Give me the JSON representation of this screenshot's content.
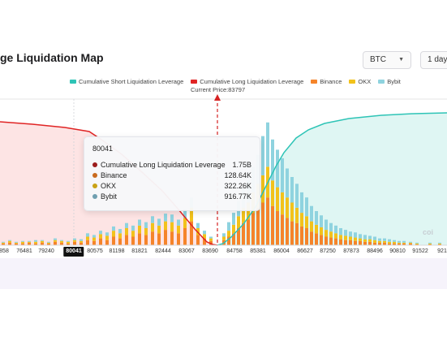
{
  "header": {
    "title": "ge Liquidation Map",
    "coin_select": "BTC",
    "range_select": "1 day"
  },
  "colors": {
    "short": "#2ec4b6",
    "long": "#e02424",
    "binance": "#f5842a",
    "okx": "#f2c21b",
    "bybit": "#8fd3df"
  },
  "chart_data": {
    "type": "bar",
    "title": "",
    "legend": {
      "placement": "top",
      "items": [
        {
          "name": "Cumulative Short Liquidation Leverage",
          "color": "#2ec4b6"
        },
        {
          "name": "Cumulative Long Liquidation Leverage",
          "color": "#e02424"
        },
        {
          "name": "Binance",
          "color": "#f5842a"
        },
        {
          "name": "OKX",
          "color": "#f2c21b"
        },
        {
          "name": "Bybit",
          "color": "#8fd3df"
        }
      ]
    },
    "current_price_label": "Current Price:83797",
    "current_price": 83797,
    "x_tick_labels": [
      "858",
      "76481",
      "79240",
      "80041",
      "80575",
      "81198",
      "81821",
      "82444",
      "83067",
      "83690",
      "84758",
      "85381",
      "86004",
      "86627",
      "87250",
      "87873",
      "88496",
      "90810",
      "91522",
      "921"
    ],
    "x_tick_positions": [
      5,
      30,
      57,
      91,
      117,
      144,
      172,
      201,
      230,
      259,
      289,
      318,
      347,
      376,
      404,
      433,
      462,
      490,
      518,
      545
    ],
    "active_tick": "80041",
    "bars": [
      {
        "x": 4,
        "b": 2,
        "o": 1,
        "y": 1
      },
      {
        "x": 12,
        "b": 3,
        "o": 2,
        "y": 1
      },
      {
        "x": 20,
        "b": 2,
        "o": 1,
        "y": 1
      },
      {
        "x": 28,
        "b": 2,
        "o": 2,
        "y": 1
      },
      {
        "x": 36,
        "b": 3,
        "o": 1,
        "y": 1
      },
      {
        "x": 44,
        "b": 2,
        "o": 2,
        "y": 2
      },
      {
        "x": 52,
        "b": 3,
        "o": 2,
        "y": 1
      },
      {
        "x": 60,
        "b": 2,
        "o": 1,
        "y": 1
      },
      {
        "x": 68,
        "b": 4,
        "o": 2,
        "y": 2
      },
      {
        "x": 76,
        "b": 3,
        "o": 2,
        "y": 1
      },
      {
        "x": 84,
        "b": 2,
        "o": 2,
        "y": 1
      },
      {
        "x": 92,
        "b": 4,
        "o": 2,
        "y": 2
      },
      {
        "x": 100,
        "b": 3,
        "o": 2,
        "y": 2
      },
      {
        "x": 108,
        "b": 6,
        "o": 4,
        "y": 4
      },
      {
        "x": 116,
        "b": 5,
        "o": 4,
        "y": 3
      },
      {
        "x": 124,
        "b": 8,
        "o": 5,
        "y": 4
      },
      {
        "x": 132,
        "b": 6,
        "o": 5,
        "y": 4
      },
      {
        "x": 140,
        "b": 10,
        "o": 7,
        "y": 5
      },
      {
        "x": 148,
        "b": 8,
        "o": 6,
        "y": 5
      },
      {
        "x": 156,
        "b": 12,
        "o": 8,
        "y": 6
      },
      {
        "x": 164,
        "b": 10,
        "o": 7,
        "y": 6
      },
      {
        "x": 172,
        "b": 14,
        "o": 9,
        "y": 7
      },
      {
        "x": 180,
        "b": 12,
        "o": 8,
        "y": 7
      },
      {
        "x": 188,
        "b": 16,
        "o": 10,
        "y": 8
      },
      {
        "x": 196,
        "b": 14,
        "o": 9,
        "y": 8
      },
      {
        "x": 204,
        "b": 18,
        "o": 10,
        "y": 9
      },
      {
        "x": 212,
        "b": 16,
        "o": 11,
        "y": 9
      },
      {
        "x": 220,
        "b": 14,
        "o": 9,
        "y": 7
      },
      {
        "x": 228,
        "b": 20,
        "o": 12,
        "y": 10
      },
      {
        "x": 236,
        "b": 28,
        "o": 16,
        "y": 12
      },
      {
        "x": 244,
        "b": 12,
        "o": 8,
        "y": 6
      },
      {
        "x": 252,
        "b": 8,
        "o": 5,
        "y": 4
      },
      {
        "x": 260,
        "b": 5,
        "o": 3,
        "y": 2
      },
      {
        "x": 276,
        "b": 6,
        "o": 4,
        "y": 4
      },
      {
        "x": 282,
        "b": 10,
        "o": 7,
        "y": 10
      },
      {
        "x": 288,
        "b": 14,
        "o": 10,
        "y": 14
      },
      {
        "x": 294,
        "b": 20,
        "o": 14,
        "y": 18
      },
      {
        "x": 300,
        "b": 26,
        "o": 18,
        "y": 22
      },
      {
        "x": 306,
        "b": 30,
        "o": 20,
        "y": 26
      },
      {
        "x": 312,
        "b": 38,
        "o": 24,
        "y": 30
      },
      {
        "x": 318,
        "b": 44,
        "o": 28,
        "y": 34
      },
      {
        "x": 324,
        "b": 50,
        "o": 32,
        "y": 46
      },
      {
        "x": 330,
        "b": 56,
        "o": 36,
        "y": 52
      },
      {
        "x": 336,
        "b": 46,
        "o": 30,
        "y": 48
      },
      {
        "x": 342,
        "b": 40,
        "o": 28,
        "y": 44
      },
      {
        "x": 348,
        "b": 36,
        "o": 26,
        "y": 40
      },
      {
        "x": 354,
        "b": 32,
        "o": 24,
        "y": 34
      },
      {
        "x": 360,
        "b": 28,
        "o": 22,
        "y": 30
      },
      {
        "x": 366,
        "b": 26,
        "o": 18,
        "y": 28
      },
      {
        "x": 372,
        "b": 22,
        "o": 16,
        "y": 24
      },
      {
        "x": 378,
        "b": 20,
        "o": 14,
        "y": 22
      },
      {
        "x": 384,
        "b": 16,
        "o": 12,
        "y": 18
      },
      {
        "x": 390,
        "b": 14,
        "o": 10,
        "y": 16
      },
      {
        "x": 396,
        "b": 12,
        "o": 9,
        "y": 14
      },
      {
        "x": 402,
        "b": 10,
        "o": 8,
        "y": 12
      },
      {
        "x": 408,
        "b": 9,
        "o": 7,
        "y": 10
      },
      {
        "x": 414,
        "b": 8,
        "o": 6,
        "y": 9
      },
      {
        "x": 420,
        "b": 7,
        "o": 5,
        "y": 8
      },
      {
        "x": 426,
        "b": 6,
        "o": 5,
        "y": 7
      },
      {
        "x": 432,
        "b": 6,
        "o": 4,
        "y": 6
      },
      {
        "x": 438,
        "b": 5,
        "o": 4,
        "y": 6
      },
      {
        "x": 444,
        "b": 5,
        "o": 3,
        "y": 5
      },
      {
        "x": 450,
        "b": 4,
        "o": 3,
        "y": 5
      },
      {
        "x": 456,
        "b": 4,
        "o": 3,
        "y": 4
      },
      {
        "x": 462,
        "b": 3,
        "o": 3,
        "y": 4
      },
      {
        "x": 468,
        "b": 3,
        "o": 2,
        "y": 3
      },
      {
        "x": 474,
        "b": 3,
        "o": 2,
        "y": 3
      },
      {
        "x": 480,
        "b": 2,
        "o": 2,
        "y": 3
      },
      {
        "x": 486,
        "b": 2,
        "o": 2,
        "y": 2
      },
      {
        "x": 492,
        "b": 2,
        "o": 1,
        "y": 2
      },
      {
        "x": 498,
        "b": 2,
        "o": 1,
        "y": 2
      },
      {
        "x": 506,
        "b": 2,
        "o": 1,
        "y": 1
      },
      {
        "x": 514,
        "b": 1,
        "o": 1,
        "y": 1
      },
      {
        "x": 530,
        "b": 1,
        "o": 1,
        "y": 1
      },
      {
        "x": 542,
        "b": 1,
        "o": 1,
        "y": 1
      }
    ],
    "long_curve": [
      [
        0,
        150
      ],
      [
        40,
        153
      ],
      [
        80,
        157
      ],
      [
        110,
        162
      ],
      [
        125,
        172
      ],
      [
        150,
        190
      ],
      [
        175,
        212
      ],
      [
        200,
        235
      ],
      [
        220,
        258
      ],
      [
        240,
        282
      ],
      [
        255,
        298
      ],
      [
        262,
        301
      ],
      [
        268,
        302
      ]
    ],
    "short_curve": [
      [
        268,
        302
      ],
      [
        275,
        300
      ],
      [
        285,
        292
      ],
      [
        300,
        276
      ],
      [
        315,
        255
      ],
      [
        330,
        225
      ],
      [
        340,
        205
      ],
      [
        350,
        188
      ],
      [
        365,
        170
      ],
      [
        380,
        160
      ],
      [
        400,
        152
      ],
      [
        430,
        146
      ],
      [
        470,
        142
      ],
      [
        510,
        140
      ],
      [
        551,
        139
      ]
    ]
  },
  "tooltip": {
    "title": "80041",
    "rows": [
      {
        "name": "Cumulative Long Liquidation Leverage",
        "value": "1.75B",
        "color": "#9c1c1c"
      },
      {
        "name": "Binance",
        "value": "128.64K",
        "color": "#c96a1e"
      },
      {
        "name": "OKX",
        "value": "322.26K",
        "color": "#c9a215"
      },
      {
        "name": "Bybit",
        "value": "916.77K",
        "color": "#6f9fb0"
      }
    ]
  },
  "watermark": "coi"
}
